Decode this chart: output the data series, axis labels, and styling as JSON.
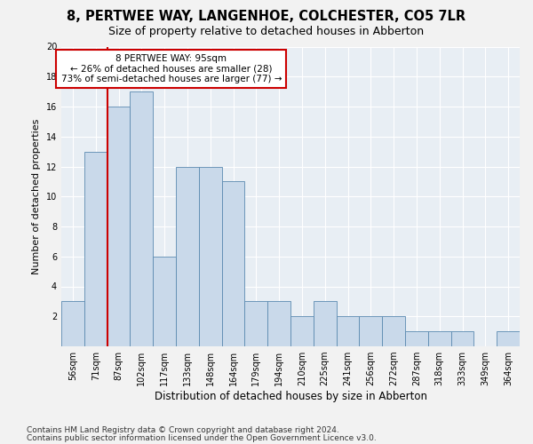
{
  "title1": "8, PERTWEE WAY, LANGENHOE, COLCHESTER, CO5 7LR",
  "title2": "Size of property relative to detached houses in Abberton",
  "xlabel": "Distribution of detached houses by size in Abberton",
  "ylabel": "Number of detached properties",
  "categories": [
    "56sqm",
    "71sqm",
    "87sqm",
    "102sqm",
    "117sqm",
    "133sqm",
    "148sqm",
    "164sqm",
    "179sqm",
    "194sqm",
    "210sqm",
    "225sqm",
    "241sqm",
    "256sqm",
    "272sqm",
    "287sqm",
    "318sqm",
    "333sqm",
    "349sqm",
    "364sqm"
  ],
  "values": [
    3,
    13,
    16,
    17,
    6,
    12,
    12,
    11,
    3,
    3,
    2,
    3,
    2,
    2,
    2,
    1,
    1,
    1,
    0,
    1
  ],
  "bar_color": "#c9d9ea",
  "bar_edge_color": "#5b8ab0",
  "vline_index": 2,
  "vline_color": "#cc0000",
  "annotation_line1": "8 PERTWEE WAY: 95sqm",
  "annotation_line2": "← 26% of detached houses are smaller (28)",
  "annotation_line3": "73% of semi-detached houses are larger (77) →",
  "annotation_box_edgecolor": "#cc0000",
  "footer1": "Contains HM Land Registry data © Crown copyright and database right 2024.",
  "footer2": "Contains public sector information licensed under the Open Government Licence v3.0.",
  "ylim": [
    0,
    20
  ],
  "yticks": [
    0,
    2,
    4,
    6,
    8,
    10,
    12,
    14,
    16,
    18,
    20
  ],
  "ax_bg_color": "#e8eef4",
  "fig_bg_color": "#f2f2f2",
  "grid_color": "#ffffff",
  "title1_fontsize": 10.5,
  "title2_fontsize": 9,
  "xlabel_fontsize": 8.5,
  "ylabel_fontsize": 8,
  "tick_fontsize": 7,
  "annot_fontsize": 7.5,
  "footer_fontsize": 6.5
}
